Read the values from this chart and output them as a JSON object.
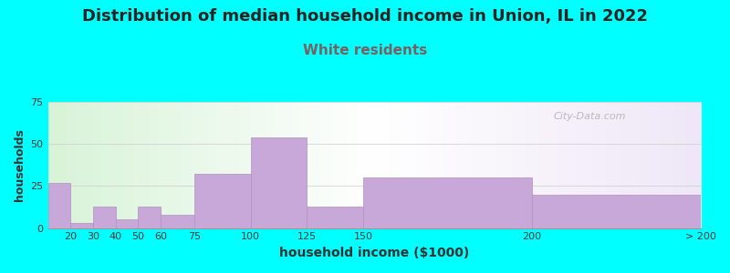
{
  "title": "Distribution of median household income in Union, IL in 2022",
  "subtitle": "White residents",
  "xlabel": "household income ($1000)",
  "ylabel": "households",
  "background_fig": "#00FFFF",
  "bar_color": "#c8a8d8",
  "bar_edgecolor": "#b090c0",
  "title_fontsize": 13,
  "subtitle_fontsize": 11,
  "subtitle_color": "#7a6060",
  "xlabel_fontsize": 10,
  "ylabel_fontsize": 9,
  "categories": [
    "20",
    "30",
    "40",
    "50",
    "60",
    "75",
    "100",
    "125",
    "150",
    "200",
    "> 200"
  ],
  "values": [
    27,
    3,
    13,
    5,
    13,
    8,
    32,
    54,
    13,
    30,
    20
  ],
  "bar_lefts": [
    10,
    20,
    30,
    40,
    50,
    60,
    75,
    100,
    125,
    150,
    225
  ],
  "bar_rights": [
    20,
    30,
    40,
    50,
    60,
    75,
    100,
    125,
    150,
    225,
    300
  ],
  "tick_positions": [
    10,
    20,
    30,
    40,
    50,
    60,
    75,
    100,
    125,
    150,
    225,
    300
  ],
  "tick_labels": [
    "",
    "20",
    "30",
    "40",
    "50",
    "60",
    "75",
    "100",
    "125",
    "150",
    "200",
    "> 200"
  ],
  "ylim": [
    0,
    75
  ],
  "yticks": [
    0,
    25,
    50,
    75
  ],
  "xlim": [
    10,
    300
  ],
  "watermark": "City-Data.com"
}
